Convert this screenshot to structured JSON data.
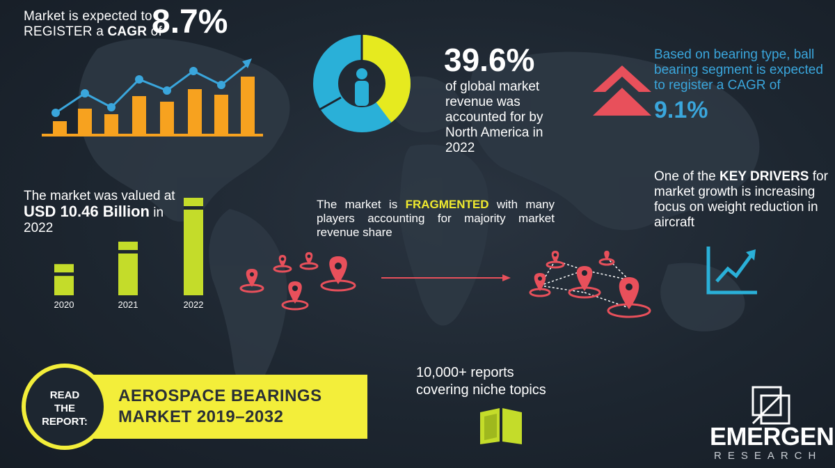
{
  "cagr": {
    "line1": "Market is expected to",
    "line2_pre": "REGISTER a ",
    "line2_bold": "CAGR",
    "line2_post": " of",
    "value": "8.7%"
  },
  "north_america": {
    "value": "39.6%",
    "lines": [
      "of global market",
      "revenue was",
      "accounted for by",
      "North America in",
      "2022"
    ],
    "share": 0.396
  },
  "ball_bearing": {
    "lines": [
      "Based on bearing type, ball",
      "bearing segment is expected",
      "to register a CAGR of"
    ],
    "value": "9.1%"
  },
  "valuation": {
    "line1": "The market was valued at",
    "bold": "USD 10.46 Billion",
    "after_bold": " in",
    "year": "2022"
  },
  "chart_data": {
    "type": "bar",
    "categories": [
      "2020",
      "2021",
      "2022"
    ],
    "series": [
      {
        "values": [
          0.32,
          0.55,
          1.0
        ]
      }
    ]
  },
  "fragmented": {
    "pre": "The market is ",
    "highlight": "FRAGMENTED",
    "post": " with many players accounting for majority market revenue share"
  },
  "drivers": {
    "pre": "One of the ",
    "bold": "KEY DRIVERS",
    "post": " for market growth is increasing focus on weight reduction in aircraft"
  },
  "banner": {
    "read": [
      "READ",
      "THE",
      "REPORT:"
    ],
    "title_line1": "AEROSPACE BEARINGS",
    "title_line2": "MARKET 2019–2032"
  },
  "reports": {
    "line1": "10,000+ reports",
    "line2": "covering niche topics"
  },
  "brand": {
    "name": "EMERGEN",
    "sub": "RESEARCH"
  },
  "colors": {
    "orange": "#f7a21f",
    "blue": "#3aa6dc",
    "yellow_green": "#c4dc2a",
    "banner_yellow": "#f3ee3a",
    "pin_red": "#e8505b"
  }
}
